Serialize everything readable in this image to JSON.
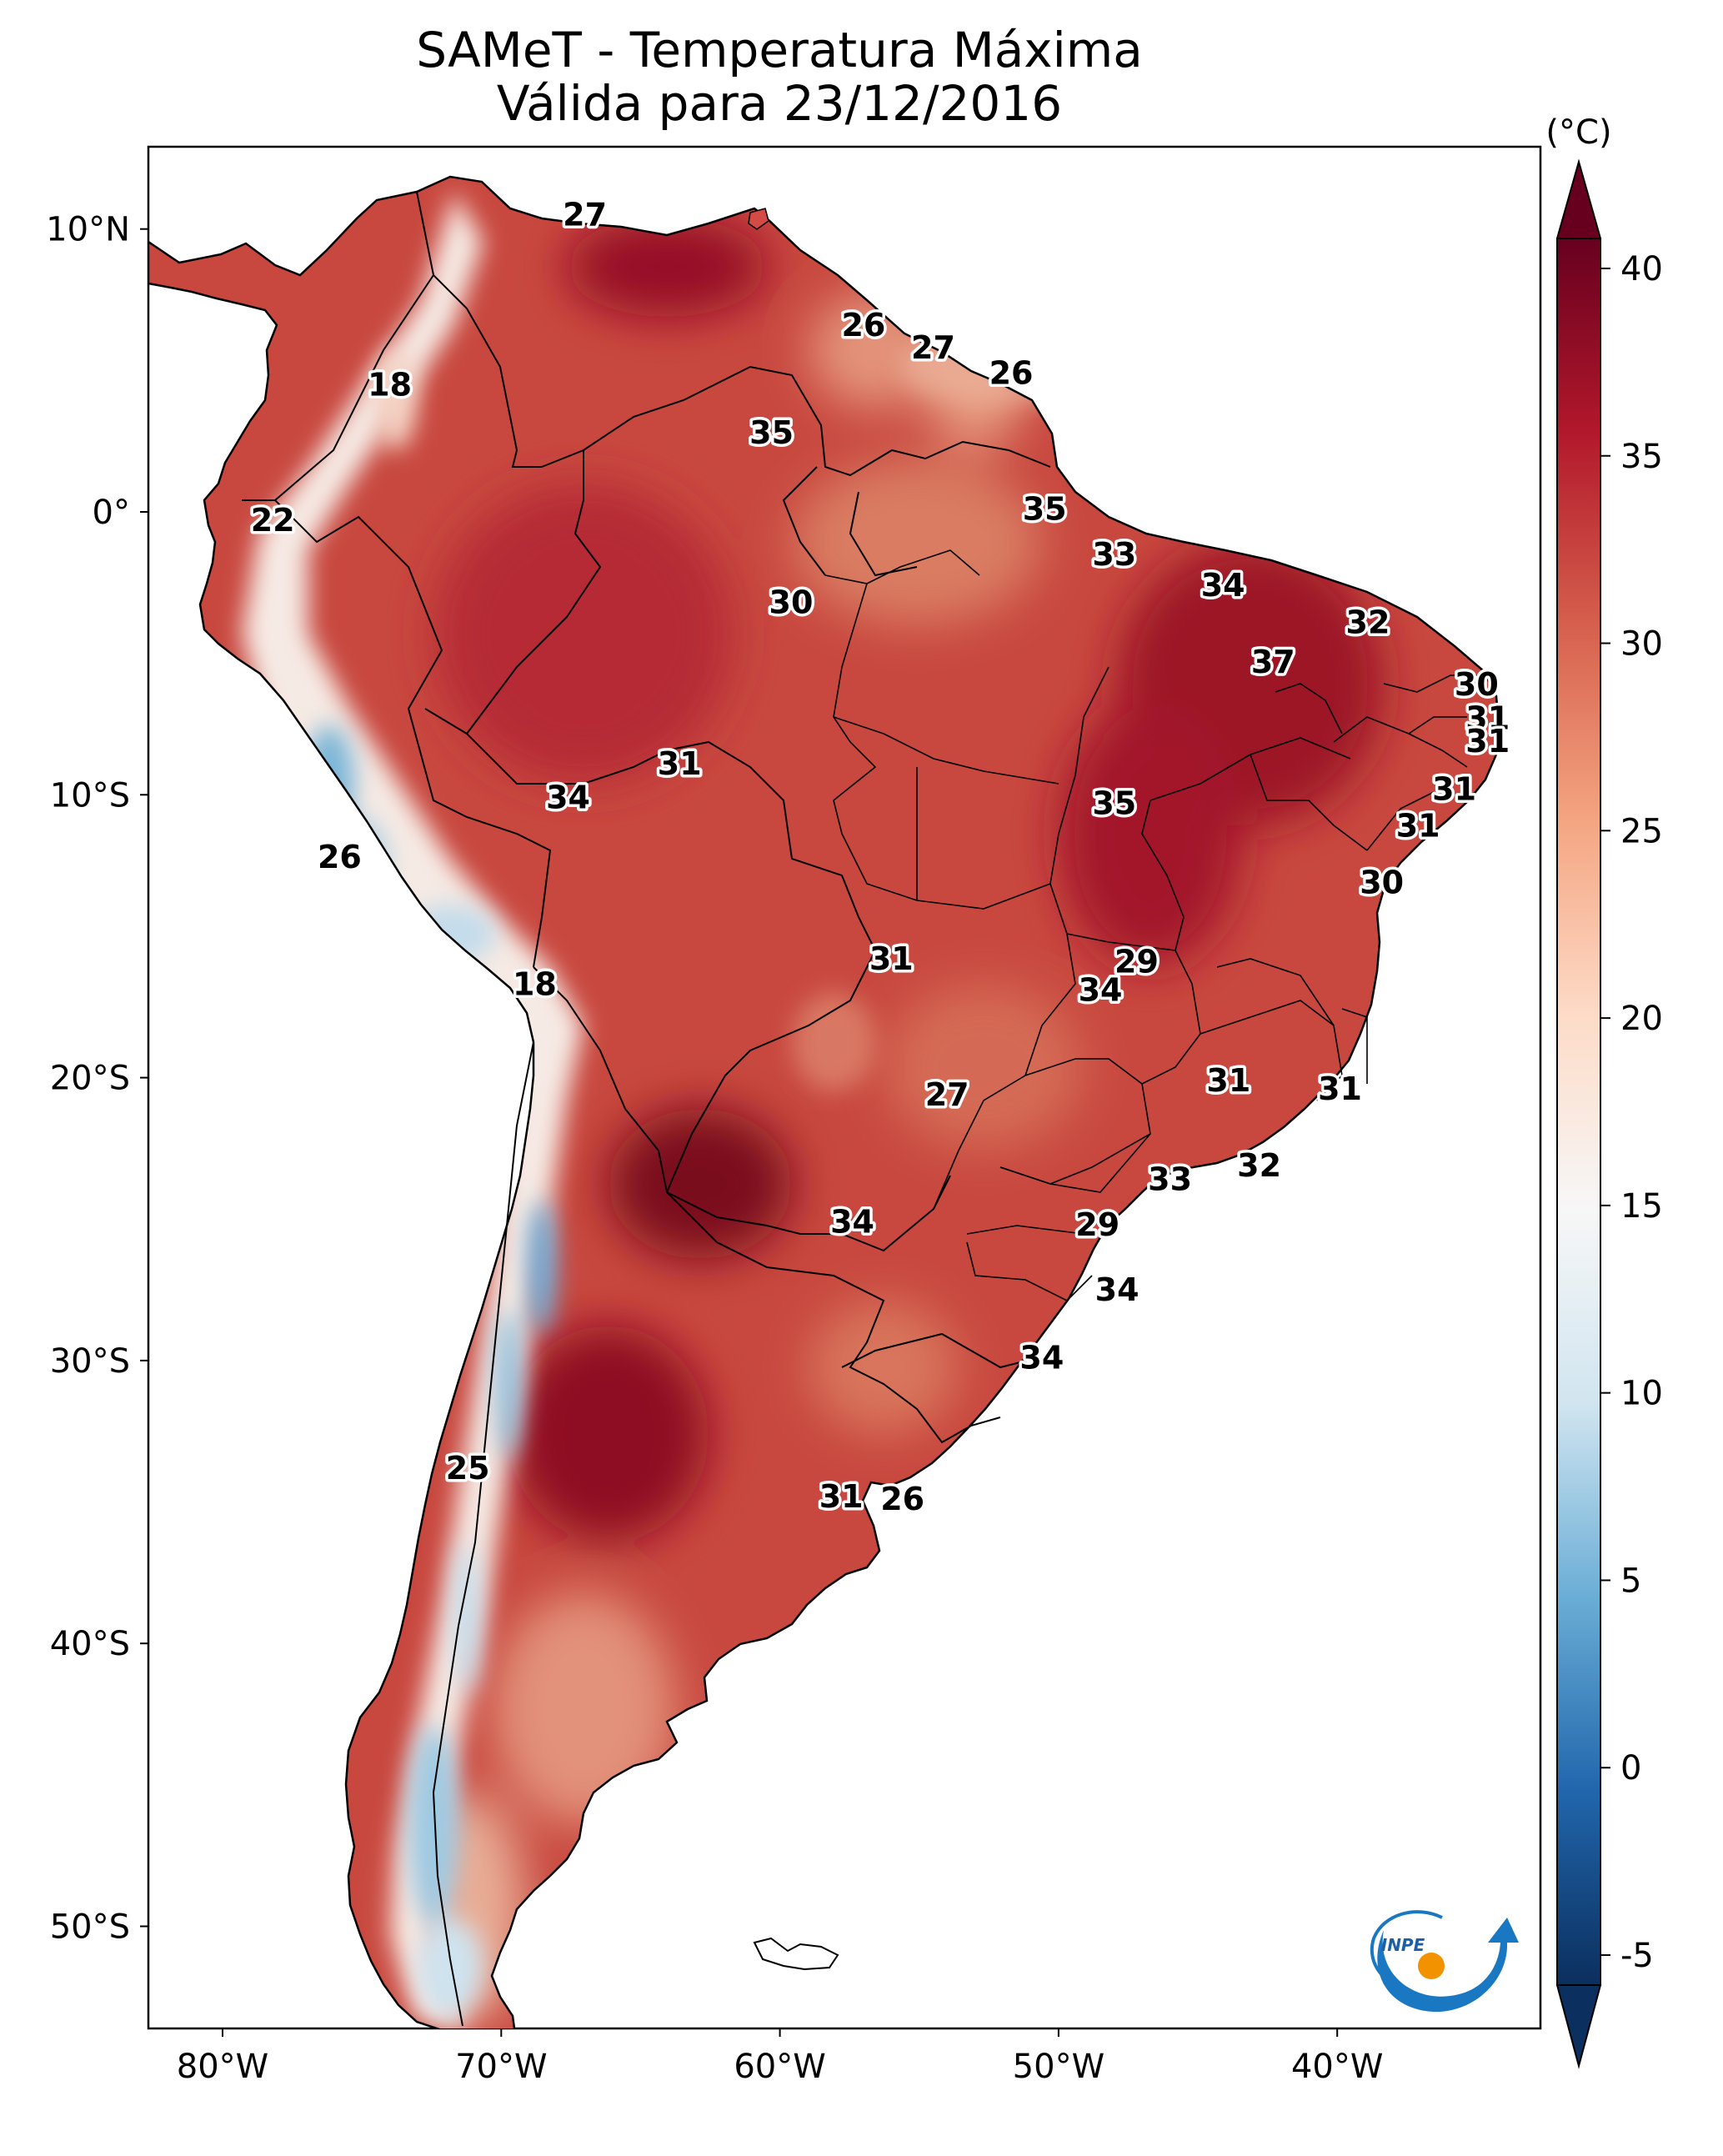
{
  "title": {
    "line1": "SAMeT - Temperatura Máxima",
    "line2": "Válida para 23/12/2016"
  },
  "axes": {
    "lat_ticks": [
      "10°N",
      "0°",
      "10°S",
      "20°S",
      "30°S",
      "40°S",
      "50°S"
    ],
    "lon_ticks": [
      "80°W",
      "70°W",
      "60°W",
      "50°W",
      "40°W"
    ]
  },
  "colorbar": {
    "unit": "(°C)",
    "min": -5,
    "max": 40,
    "ticks": [
      "-5",
      "0",
      "5",
      "10",
      "15",
      "20",
      "25",
      "30",
      "35",
      "40"
    ],
    "colors": [
      "#0b2f5e",
      "#2166ac",
      "#6aaed6",
      "#d1e5f0",
      "#f7f7f7",
      "#fddbc7",
      "#f4a582",
      "#d6604d",
      "#b2182b",
      "#67001f"
    ]
  },
  "map_labels": [
    {
      "value": "27",
      "lon": -67,
      "lat": 10.5
    },
    {
      "value": "18",
      "lon": -74,
      "lat": 4.5
    },
    {
      "value": "26",
      "lon": -57,
      "lat": 6.6
    },
    {
      "value": "27",
      "lon": -54.5,
      "lat": 5.8
    },
    {
      "value": "26",
      "lon": -51.7,
      "lat": 4.9
    },
    {
      "value": "35",
      "lon": -60.3,
      "lat": 2.8
    },
    {
      "value": "22",
      "lon": -78.2,
      "lat": -0.3
    },
    {
      "value": "35",
      "lon": -50.5,
      "lat": 0.1
    },
    {
      "value": "33",
      "lon": -48,
      "lat": -1.5
    },
    {
      "value": "30",
      "lon": -59.6,
      "lat": -3.2
    },
    {
      "value": "34",
      "lon": -44.1,
      "lat": -2.6
    },
    {
      "value": "32",
      "lon": -38.9,
      "lat": -3.9
    },
    {
      "value": "37",
      "lon": -42.3,
      "lat": -5.3
    },
    {
      "value": "30",
      "lon": -35,
      "lat": -6.1
    },
    {
      "value": "31",
      "lon": -34.6,
      "lat": -7.3
    },
    {
      "value": "31",
      "lon": -34.6,
      "lat": -8.1
    },
    {
      "value": "31",
      "lon": -63.6,
      "lat": -8.9
    },
    {
      "value": "34",
      "lon": -67.6,
      "lat": -10.1
    },
    {
      "value": "35",
      "lon": -48,
      "lat": -10.3
    },
    {
      "value": "31",
      "lon": -35.8,
      "lat": -9.8
    },
    {
      "value": "31",
      "lon": -37.1,
      "lat": -11.1
    },
    {
      "value": "26",
      "lon": -75.8,
      "lat": -12.2
    },
    {
      "value": "30",
      "lon": -38.4,
      "lat": -13.1
    },
    {
      "value": "31",
      "lon": -56,
      "lat": -15.8
    },
    {
      "value": "29",
      "lon": -47.2,
      "lat": -15.9
    },
    {
      "value": "34",
      "lon": -48.5,
      "lat": -16.9
    },
    {
      "value": "18",
      "lon": -68.8,
      "lat": -16.7
    },
    {
      "value": "31",
      "lon": -43.9,
      "lat": -20.1
    },
    {
      "value": "27",
      "lon": -54,
      "lat": -20.6
    },
    {
      "value": "31",
      "lon": -39.9,
      "lat": -20.4
    },
    {
      "value": "32",
      "lon": -42.8,
      "lat": -23.1
    },
    {
      "value": "33",
      "lon": -46,
      "lat": -23.6
    },
    {
      "value": "34",
      "lon": -57.4,
      "lat": -25.1
    },
    {
      "value": "29",
      "lon": -48.6,
      "lat": -25.2
    },
    {
      "value": "34",
      "lon": -47.9,
      "lat": -27.5
    },
    {
      "value": "34",
      "lon": -50.6,
      "lat": -29.9
    },
    {
      "value": "25",
      "lon": -71.2,
      "lat": -33.8
    },
    {
      "value": "31",
      "lon": -57.8,
      "lat": -34.8
    },
    {
      "value": "26",
      "lon": -55.6,
      "lat": -34.9
    }
  ],
  "logo": {
    "text": "INPE",
    "colors": {
      "blue": "#1a78c2",
      "orange": "#f39200"
    }
  }
}
